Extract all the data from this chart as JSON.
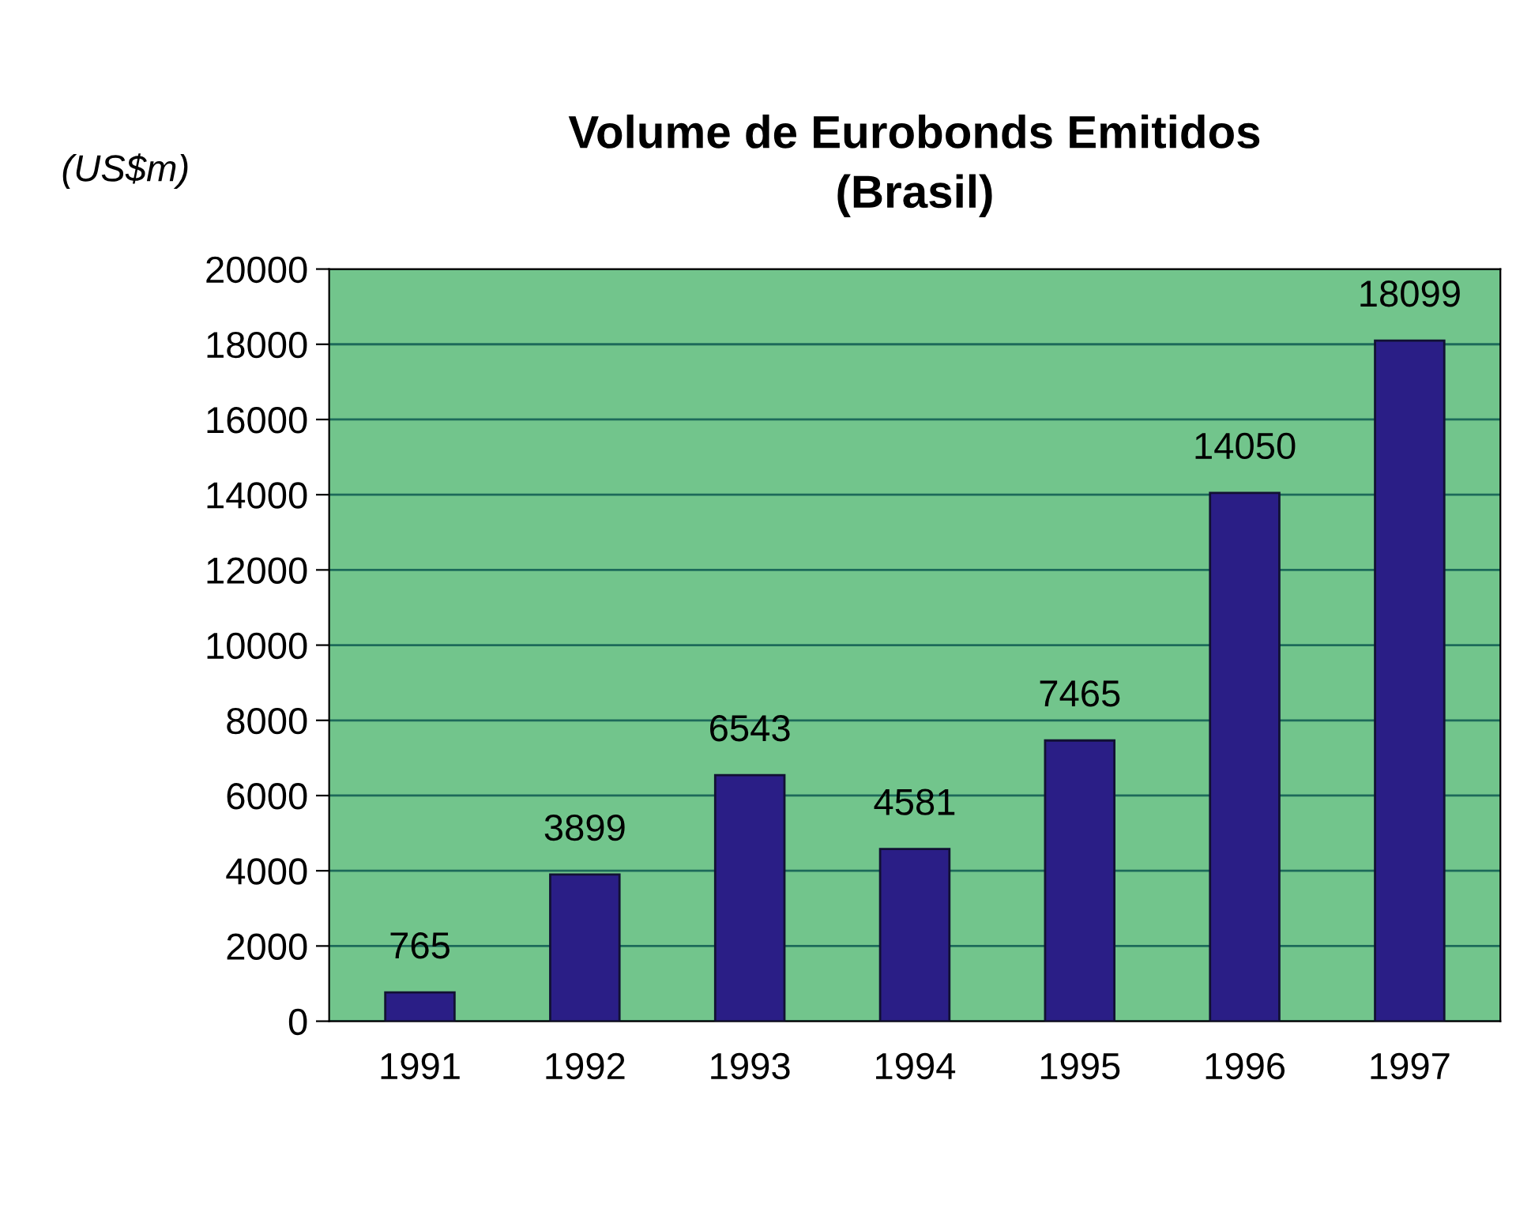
{
  "chart_data": {
    "type": "bar",
    "title": "Volume de Eurobonds Emitidos\n(Brasil)",
    "ylabel": "(US$m)",
    "categories": [
      "1991",
      "1992",
      "1993",
      "1994",
      "1995",
      "1996",
      "1997"
    ],
    "values": [
      765,
      3899,
      6543,
      4581,
      7465,
      14050,
      18099
    ],
    "color": "#2a1e86",
    "ylim": [
      0,
      20000
    ],
    "yticks": [
      0,
      2000,
      4000,
      6000,
      8000,
      10000,
      12000,
      14000,
      16000,
      18000,
      20000
    ],
    "grid": "y",
    "data_labels": true,
    "legend": false
  }
}
